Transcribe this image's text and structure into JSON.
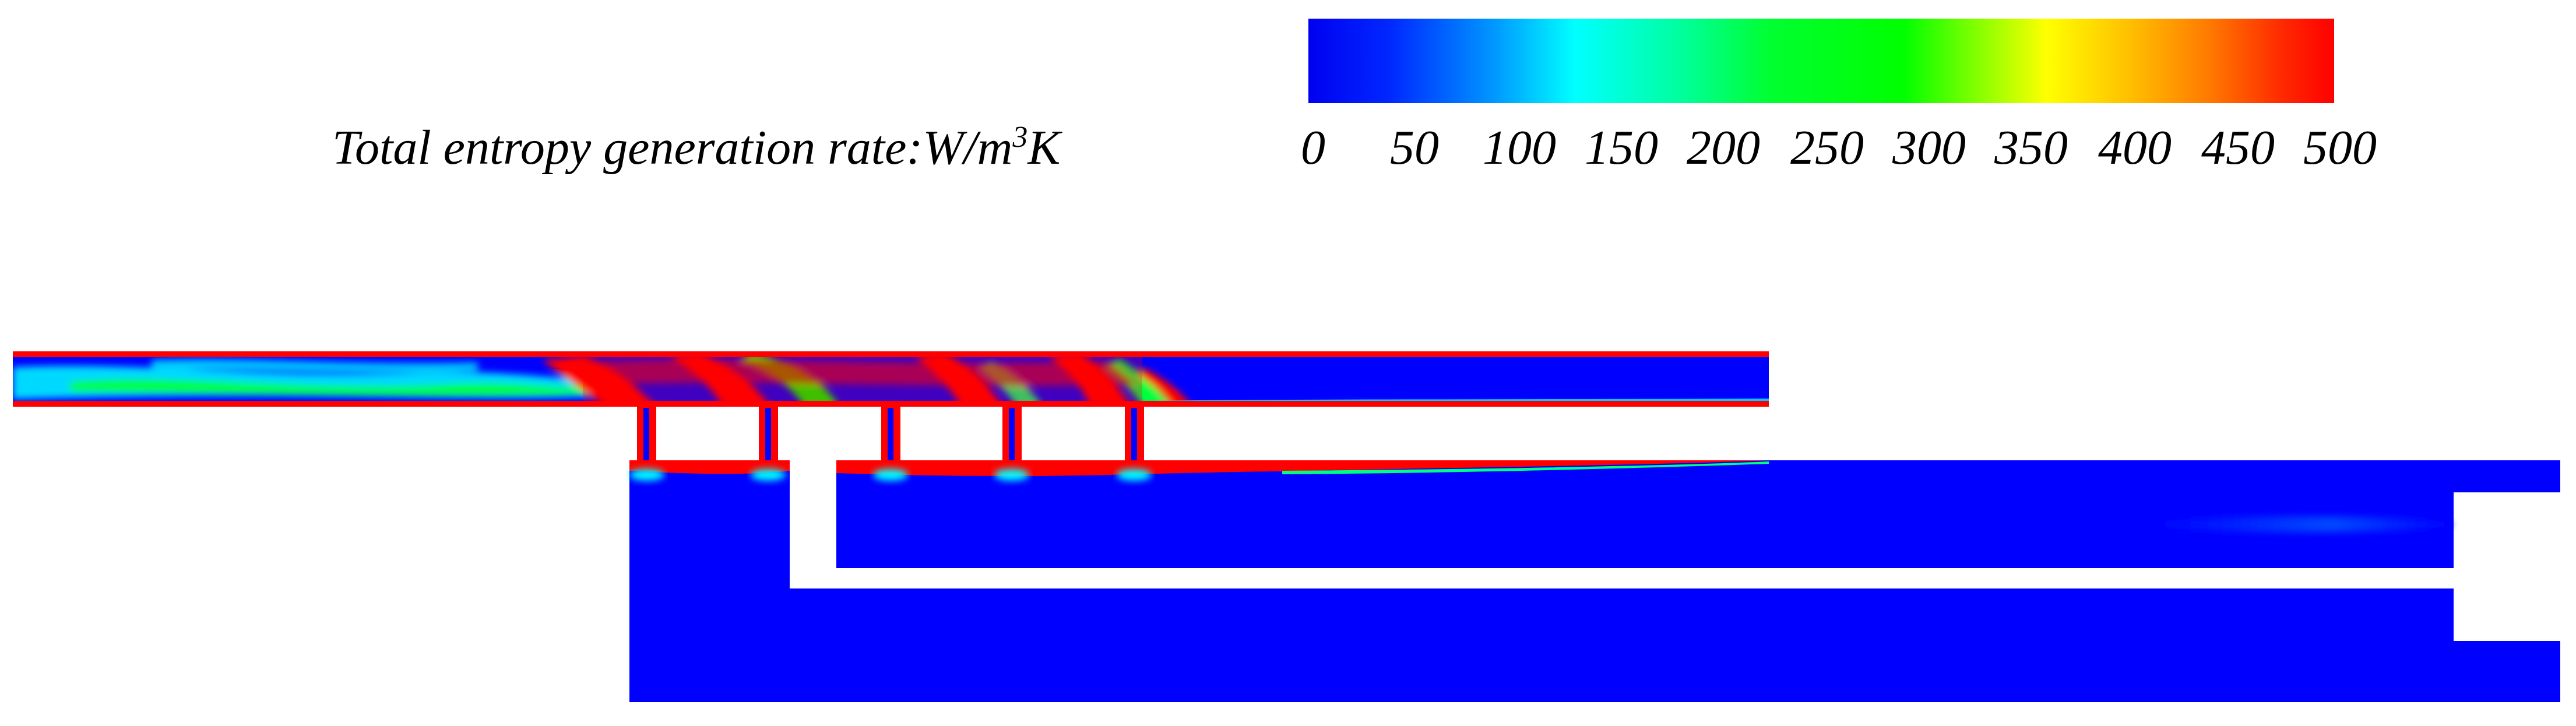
{
  "legend": {
    "title_text": "Total entropy generation rate:W/m",
    "title_sup": "3",
    "title_tail": "K",
    "ticks": [
      "0",
      "50",
      "100",
      "150",
      "200",
      "250",
      "300",
      "350",
      "400",
      "450",
      "500"
    ],
    "range": [
      0,
      500
    ],
    "colormap": [
      "#0000ff",
      "#0064ff",
      "#00c8ff",
      "#00ffff",
      "#00ffb4",
      "#00ff64",
      "#00ff00",
      "#32ff00",
      "#c8ff00",
      "#ffff00",
      "#ffc800",
      "#ff8c00",
      "#ff5000",
      "#ff0000"
    ]
  },
  "colors": {
    "low": "#0000ff",
    "high": "#ff0000",
    "mid": "#00ff00",
    "background": "#ffffff"
  }
}
